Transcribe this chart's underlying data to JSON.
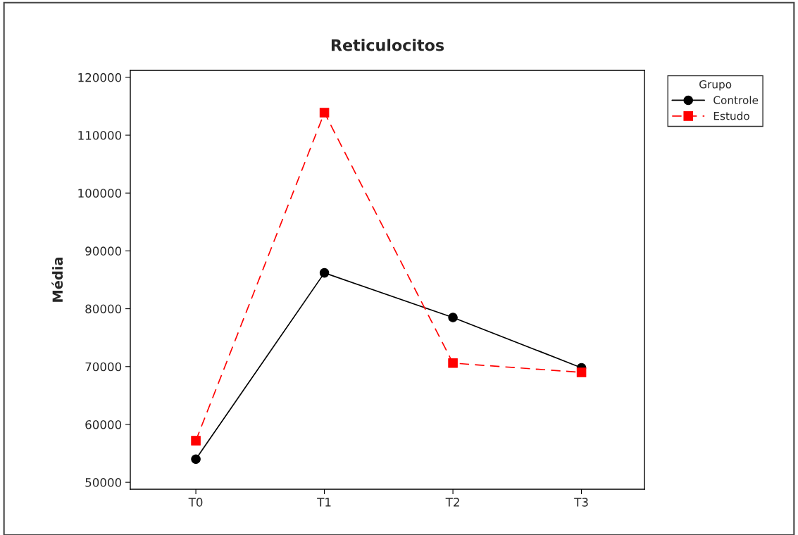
{
  "chart_data": {
    "type": "line",
    "title": "Reticulocitos",
    "ylabel": "Média",
    "legend_title": "Grupo",
    "categories": [
      "T0",
      "T1",
      "T2",
      "T3"
    ],
    "series": [
      {
        "name": "Controle",
        "color": "#000000",
        "marker": "circle",
        "line_style": "solid",
        "values": [
          54000,
          86200,
          78500,
          69800
        ]
      },
      {
        "name": "Estudo",
        "color": "#ff0000",
        "marker": "square",
        "line_style": "dashed",
        "values": [
          57200,
          113900,
          70600,
          69000
        ]
      }
    ],
    "ylim": [
      48800,
      121200
    ],
    "yticks": [
      50000,
      60000,
      70000,
      80000,
      90000,
      100000,
      110000,
      120000
    ],
    "grid": false,
    "legend": "top right"
  }
}
